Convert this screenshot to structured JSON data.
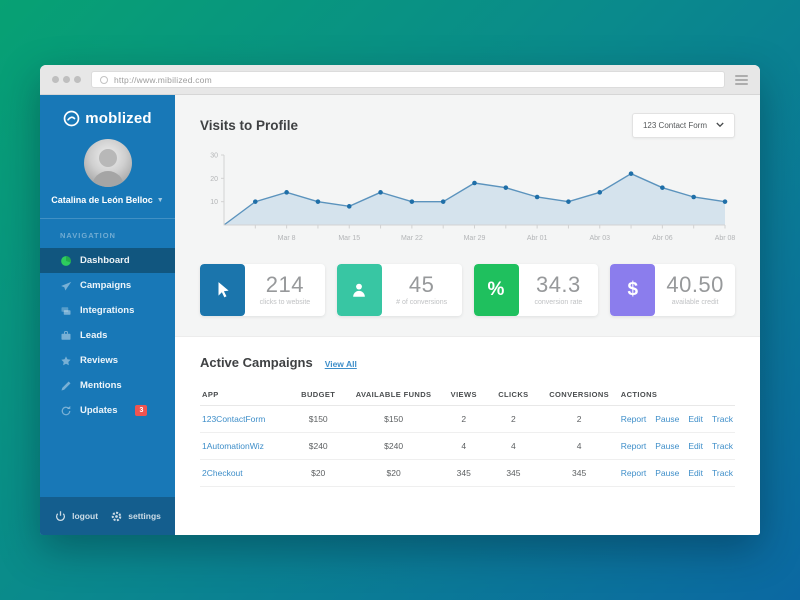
{
  "browser": {
    "url": "http://www.mibilized.com"
  },
  "sidebar": {
    "logo_text": "moblized",
    "user_name": "Catalina de León Belloc",
    "nav_label": "NAVIGATION",
    "nav_items": [
      {
        "label": "Dashboard",
        "icon": "pie-chart-icon",
        "active": true
      },
      {
        "label": "Campaigns",
        "icon": "send-icon"
      },
      {
        "label": "Integrations",
        "icon": "layers-icon"
      },
      {
        "label": "Leads",
        "icon": "briefcase-icon"
      },
      {
        "label": "Reviews",
        "icon": "star-icon"
      },
      {
        "label": "Mentions",
        "icon": "pencil-icon"
      },
      {
        "label": "Updates",
        "icon": "refresh-icon",
        "badge": "3"
      }
    ],
    "footer": {
      "logout_label": "logout",
      "settings_label": "settings"
    }
  },
  "main": {
    "title": "Visits to Profile",
    "filter_dropdown": {
      "selected": "123 Contact Form"
    },
    "stats": [
      {
        "icon": "cursor-icon",
        "color": "#1b75ac",
        "value": "214",
        "label": "clicks to website"
      },
      {
        "icon": "person-icon",
        "color": "#38c6a3",
        "value": "45",
        "label": "# of conversions"
      },
      {
        "icon": "percent-icon",
        "color": "#1fc05e",
        "value": "34.3",
        "label": "conversion rate"
      },
      {
        "icon": "dollar-icon",
        "color": "#8b7ded",
        "value": "40.50",
        "label": "available credit"
      }
    ],
    "campaigns": {
      "title": "Active Campaigns",
      "view_all_label": "View All",
      "columns": [
        "APP",
        "BUDGET",
        "AVAILABLE FUNDS",
        "VIEWS",
        "CLICKS",
        "CONVERSIONS",
        "ACTIONS"
      ],
      "rows": [
        {
          "cells": [
            "123ContactForm",
            "$150",
            "$150",
            "2",
            "2",
            "2"
          ],
          "actions": [
            "Report",
            "Pause",
            "Edit",
            "Track"
          ]
        },
        {
          "cells": [
            "1AutomationWiz",
            "$240",
            "$240",
            "4",
            "4",
            "4"
          ],
          "actions": [
            "Report",
            "Pause",
            "Edit",
            "Track"
          ]
        },
        {
          "cells": [
            "2Checkout",
            "$20",
            "$20",
            "345",
            "345",
            "345"
          ],
          "actions": [
            "Report",
            "Pause",
            "Edit",
            "Track"
          ]
        }
      ]
    }
  },
  "chart_data": {
    "type": "area",
    "title": "Visits to Profile",
    "values": [
      0,
      10,
      14,
      10,
      8,
      14,
      10,
      10,
      18,
      16,
      12,
      10,
      14,
      22,
      16,
      12,
      10
    ],
    "x_labels": [
      "Mar 8",
      "Mar 15",
      "Mar 22",
      "Mar 29",
      "Abr 01",
      "Abr 03",
      "Abr 06",
      "Abr 08"
    ],
    "labeled_point_indices": [
      2,
      4,
      6,
      8,
      10,
      12,
      14,
      16
    ],
    "ylim": [
      0,
      30
    ],
    "y_ticks": [
      10,
      20,
      30
    ],
    "grid": false,
    "legend": "none",
    "line_color": "#5b93bd",
    "fill_color": "#cfdfeb",
    "dot_color": "#1f6fa8",
    "axis_color": "#d2d2d2",
    "tick_label_color": "#b3b5b7"
  }
}
